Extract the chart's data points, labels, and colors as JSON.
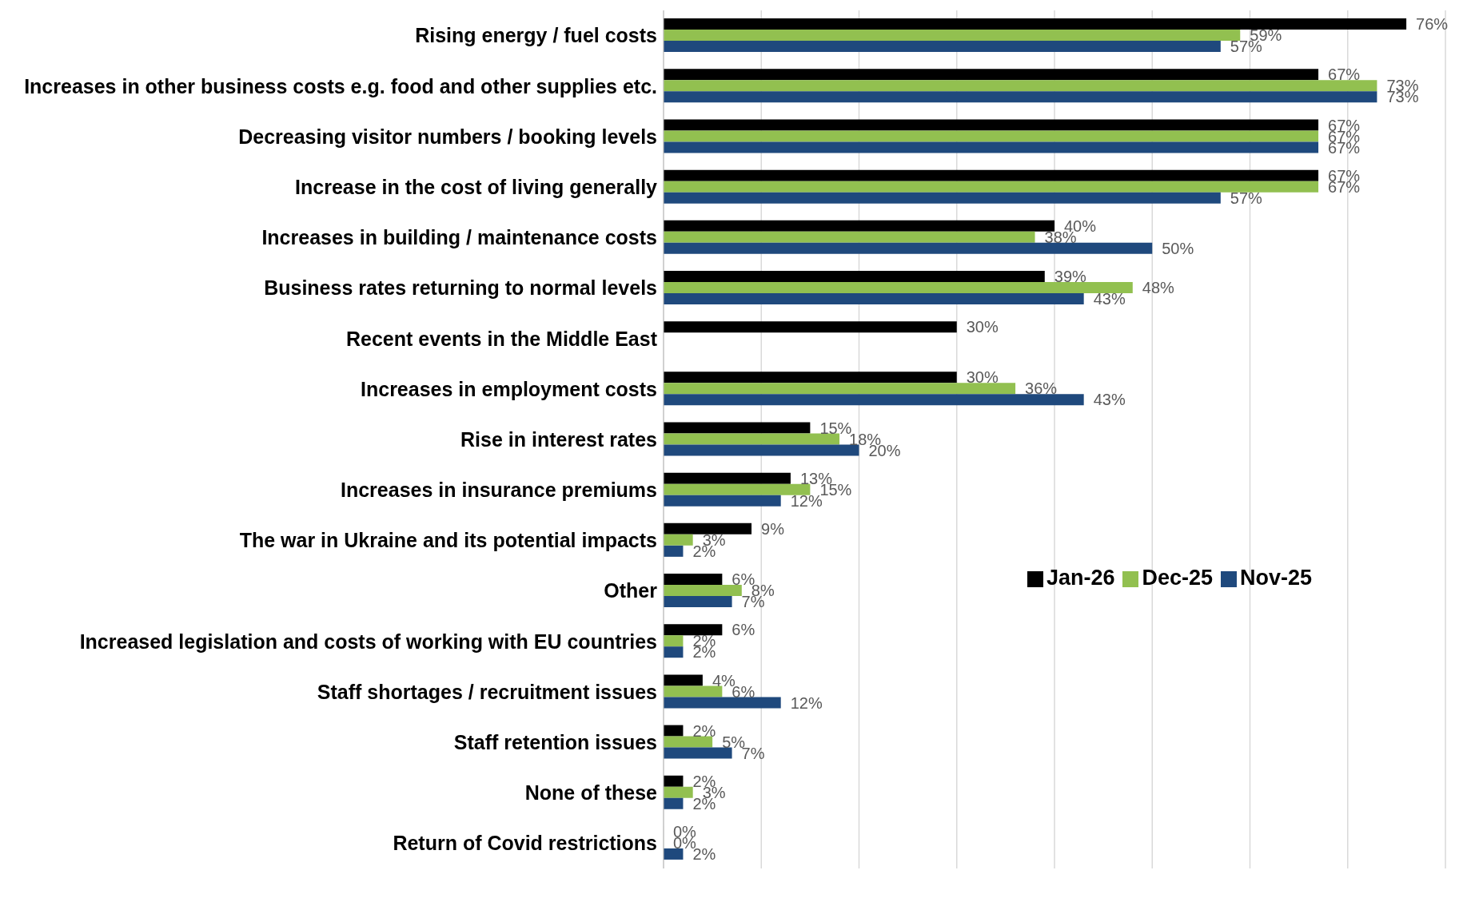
{
  "chart_data": {
    "type": "bar",
    "orientation": "horizontal",
    "categories": [
      "Rising energy / fuel costs",
      "Increases in other business costs e.g. food and other supplies etc.",
      "Decreasing visitor numbers / booking levels",
      "Increase in the cost of living generally",
      "Increases in building / maintenance costs",
      "Business rates returning to normal levels",
      "Recent events in the Middle East",
      "Increases in employment costs",
      "Rise in interest rates",
      "Increases in insurance premiums",
      "The war in Ukraine and its potential impacts",
      "Other",
      "Increased legislation and costs of working with EU countries",
      "Staff shortages / recruitment issues",
      "Staff retention issues",
      "None of these",
      "Return of Covid restrictions"
    ],
    "series": [
      {
        "name": "Jan-26",
        "color": "#000000",
        "values": [
          76,
          67,
          67,
          67,
          40,
          39,
          30,
          30,
          15,
          13,
          9,
          6,
          6,
          4,
          2,
          2,
          0
        ],
        "value_labels": [
          "76%",
          "67%",
          "67%",
          "67%",
          "40%",
          "39%",
          "30%",
          "30%",
          "15%",
          "13%",
          "9%",
          "6%",
          "6%",
          "4%",
          "2%",
          "2%",
          "0%"
        ]
      },
      {
        "name": "Dec-25",
        "color": "#92c050",
        "values": [
          59,
          73,
          67,
          67,
          38,
          48,
          null,
          36,
          18,
          15,
          3,
          8,
          2,
          6,
          5,
          3,
          0
        ],
        "value_labels": [
          "59%",
          "73%",
          "67%",
          "67%",
          "38%",
          "48%",
          null,
          "36%",
          "18%",
          "15%",
          "3%",
          "8%",
          "2%",
          "6%",
          "5%",
          "3%",
          "0%"
        ]
      },
      {
        "name": "Nov-25",
        "color": "#1f497d",
        "values": [
          57,
          73,
          67,
          57,
          50,
          43,
          null,
          43,
          20,
          12,
          2,
          7,
          2,
          12,
          7,
          2,
          2
        ],
        "value_labels": [
          "57%",
          "73%",
          "67%",
          "57%",
          "50%",
          "43%",
          null,
          "43%",
          "20%",
          "12%",
          "2%",
          "7%",
          "2%",
          "12%",
          "7%",
          "2%",
          "2%"
        ]
      }
    ],
    "xlim": [
      0,
      80
    ],
    "xticks": [
      {
        "value": 0,
        "label": null
      },
      {
        "value": 10,
        "label": null
      },
      {
        "value": 20,
        "label": null
      },
      {
        "value": 30,
        "label": null
      },
      {
        "value": 40,
        "label": null
      },
      {
        "value": 50,
        "label": null
      },
      {
        "value": 60,
        "label": null
      },
      {
        "value": 70,
        "label": null
      },
      {
        "value": 80,
        "label": null
      }
    ],
    "tick_labels": "y",
    "grid": "x",
    "legend": "right"
  }
}
